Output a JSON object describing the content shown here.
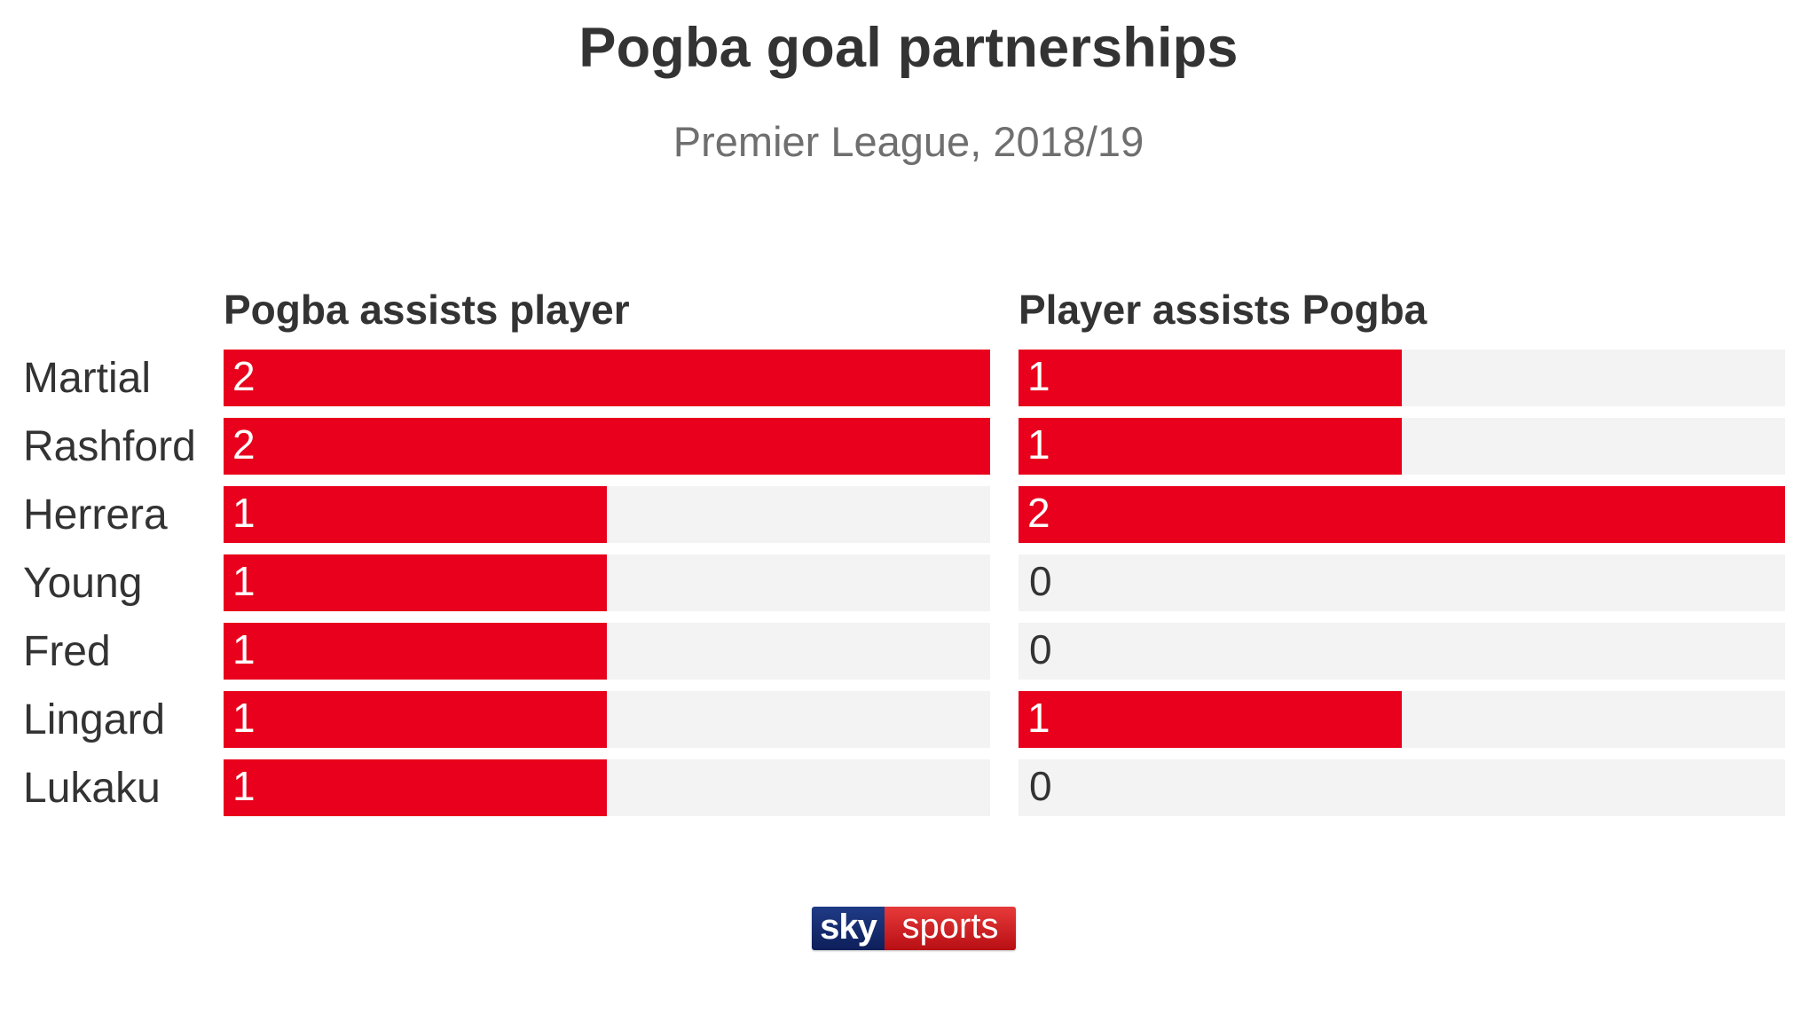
{
  "chart_data": {
    "type": "bar",
    "orientation": "horizontal",
    "title": "Pogba goal partnerships",
    "subtitle": "Premier League, 2018/19",
    "categories": [
      "Martial",
      "Rashford",
      "Herrera",
      "Young",
      "Fred",
      "Lingard",
      "Lukaku"
    ],
    "series": [
      {
        "name": "Pogba assists player",
        "values": [
          2,
          2,
          1,
          1,
          1,
          1,
          1
        ]
      },
      {
        "name": "Player assists Pogba",
        "values": [
          1,
          1,
          2,
          0,
          0,
          1,
          0
        ]
      }
    ],
    "xlim": [
      0,
      2
    ],
    "grid": false,
    "legend": "none",
    "colors": {
      "bar": "#e8001c",
      "track": "#f3f3f3",
      "bar_label": "#ffffff",
      "empty_label": "#333333"
    }
  },
  "logo": {
    "part1": "sky",
    "part2": "sports"
  }
}
